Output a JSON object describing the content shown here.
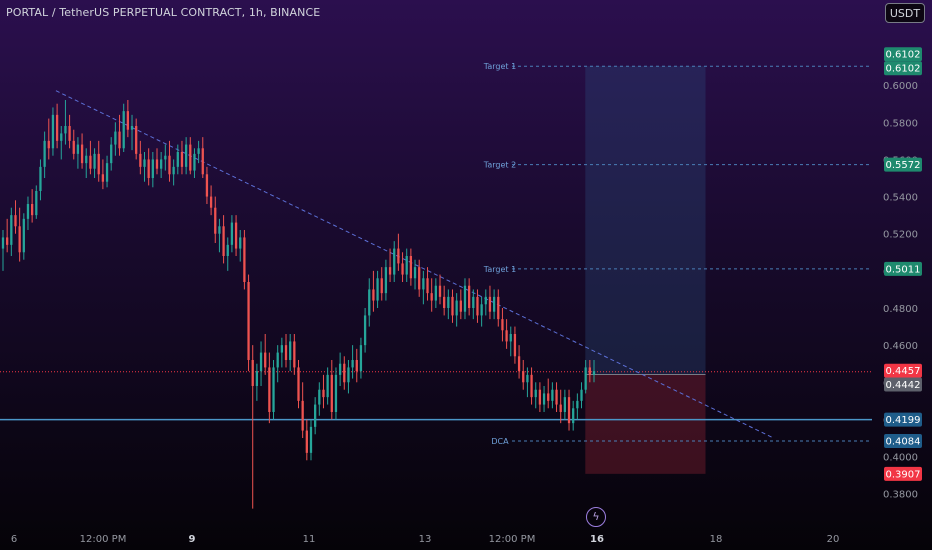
{
  "header": {
    "title": "PORTAL / TetherUS PERPETUAL CONTRACT, 1h, BINANCE",
    "currency_button": "USDT"
  },
  "flash_icon": "lightning-icon",
  "chart_data": {
    "type": "candlestick",
    "symbol": "PORTAL / TetherUS PERPETUAL CONTRACT",
    "interval": "1h",
    "exchange": "BINANCE",
    "y_axis": {
      "range": [
        0.368,
        0.62
      ],
      "ticks": [
        "0.6000",
        "0.5800",
        "0.5600",
        "0.5400",
        "0.5200",
        "0.5000",
        "0.4800",
        "0.4600",
        "0.4400",
        "0.4200",
        "0.4000",
        "0.3800"
      ]
    },
    "x_axis": {
      "ticks": [
        "6",
        "12:00 PM",
        "9",
        "11",
        "13",
        "12:00 PM",
        "16",
        "18",
        "20"
      ],
      "bold_ticks": [
        "9",
        "16"
      ]
    },
    "price_labels": [
      {
        "text": "0.6102",
        "value": 0.6102,
        "color": "#1e8a6e"
      },
      {
        "text": "0.6102",
        "value": 0.6102,
        "color": "#1e8a6e"
      },
      {
        "text": "0.5572",
        "value": 0.5572,
        "color": "#1e8a6e"
      },
      {
        "text": "0.5011",
        "value": 0.5011,
        "color": "#1e8a6e"
      },
      {
        "text": "0.4457",
        "value": 0.4457,
        "color": "#f23645"
      },
      {
        "text": "0.4442",
        "value": 0.4442,
        "color": "#5d606b"
      },
      {
        "text": "0.4199",
        "value": 0.4199,
        "color": "#1f5d8a"
      },
      {
        "text": "0.4084",
        "value": 0.4084,
        "color": "#1f5d8a"
      },
      {
        "text": "0.3907",
        "value": 0.3907,
        "color": "#f23645"
      }
    ],
    "levels": [
      {
        "label": "Target 1",
        "value": 0.6102
      },
      {
        "label": "Target 2",
        "value": 0.5572
      },
      {
        "label": "Target 1",
        "value": 0.5011
      },
      {
        "label": "DCA",
        "value": 0.4084
      }
    ],
    "support_line": 0.4199,
    "current_price": 0.4457,
    "position": {
      "entry": 0.4442,
      "target": 0.6102,
      "stop": 0.3907,
      "x_start_pct": 0.628,
      "x_end_pct": 0.757
    },
    "trendline": {
      "start": {
        "x_pct": 0.06,
        "price": 0.597
      },
      "end": {
        "x_pct": 0.83,
        "price": 0.41
      }
    },
    "candles": [
      {
        "o": 0.512,
        "h": 0.522,
        "l": 0.5,
        "c": 0.518
      },
      {
        "o": 0.518,
        "h": 0.528,
        "l": 0.51,
        "c": 0.514
      },
      {
        "o": 0.514,
        "h": 0.534,
        "l": 0.508,
        "c": 0.53
      },
      {
        "o": 0.53,
        "h": 0.538,
        "l": 0.52,
        "c": 0.524
      },
      {
        "o": 0.524,
        "h": 0.534,
        "l": 0.505,
        "c": 0.51
      },
      {
        "o": 0.51,
        "h": 0.531,
        "l": 0.506,
        "c": 0.528
      },
      {
        "o": 0.528,
        "h": 0.54,
        "l": 0.522,
        "c": 0.536
      },
      {
        "o": 0.536,
        "h": 0.544,
        "l": 0.526,
        "c": 0.53
      },
      {
        "o": 0.53,
        "h": 0.546,
        "l": 0.528,
        "c": 0.543
      },
      {
        "o": 0.543,
        "h": 0.56,
        "l": 0.538,
        "c": 0.556
      },
      {
        "o": 0.556,
        "h": 0.575,
        "l": 0.55,
        "c": 0.57
      },
      {
        "o": 0.57,
        "h": 0.582,
        "l": 0.56,
        "c": 0.566
      },
      {
        "o": 0.566,
        "h": 0.588,
        "l": 0.562,
        "c": 0.584
      },
      {
        "o": 0.584,
        "h": 0.59,
        "l": 0.566,
        "c": 0.57
      },
      {
        "o": 0.57,
        "h": 0.578,
        "l": 0.56,
        "c": 0.574
      },
      {
        "o": 0.574,
        "h": 0.592,
        "l": 0.568,
        "c": 0.578
      },
      {
        "o": 0.578,
        "h": 0.584,
        "l": 0.566,
        "c": 0.57
      },
      {
        "o": 0.57,
        "h": 0.576,
        "l": 0.56,
        "c": 0.563
      },
      {
        "o": 0.563,
        "h": 0.572,
        "l": 0.555,
        "c": 0.568
      },
      {
        "o": 0.568,
        "h": 0.574,
        "l": 0.555,
        "c": 0.558
      },
      {
        "o": 0.558,
        "h": 0.566,
        "l": 0.55,
        "c": 0.562
      },
      {
        "o": 0.562,
        "h": 0.57,
        "l": 0.552,
        "c": 0.555
      },
      {
        "o": 0.555,
        "h": 0.566,
        "l": 0.55,
        "c": 0.563
      },
      {
        "o": 0.563,
        "h": 0.57,
        "l": 0.548,
        "c": 0.552
      },
      {
        "o": 0.552,
        "h": 0.56,
        "l": 0.544,
        "c": 0.548
      },
      {
        "o": 0.548,
        "h": 0.562,
        "l": 0.545,
        "c": 0.558
      },
      {
        "o": 0.558,
        "h": 0.572,
        "l": 0.554,
        "c": 0.568
      },
      {
        "o": 0.568,
        "h": 0.58,
        "l": 0.562,
        "c": 0.575
      },
      {
        "o": 0.575,
        "h": 0.584,
        "l": 0.562,
        "c": 0.566
      },
      {
        "o": 0.566,
        "h": 0.59,
        "l": 0.564,
        "c": 0.586
      },
      {
        "o": 0.586,
        "h": 0.592,
        "l": 0.572,
        "c": 0.576
      },
      {
        "o": 0.576,
        "h": 0.584,
        "l": 0.565,
        "c": 0.578
      },
      {
        "o": 0.578,
        "h": 0.582,
        "l": 0.56,
        "c": 0.563
      },
      {
        "o": 0.563,
        "h": 0.57,
        "l": 0.552,
        "c": 0.556
      },
      {
        "o": 0.556,
        "h": 0.564,
        "l": 0.548,
        "c": 0.56
      },
      {
        "o": 0.56,
        "h": 0.566,
        "l": 0.546,
        "c": 0.55
      },
      {
        "o": 0.55,
        "h": 0.564,
        "l": 0.545,
        "c": 0.56
      },
      {
        "o": 0.56,
        "h": 0.566,
        "l": 0.552,
        "c": 0.555
      },
      {
        "o": 0.555,
        "h": 0.564,
        "l": 0.55,
        "c": 0.56
      },
      {
        "o": 0.56,
        "h": 0.568,
        "l": 0.554,
        "c": 0.562
      },
      {
        "o": 0.562,
        "h": 0.57,
        "l": 0.548,
        "c": 0.552
      },
      {
        "o": 0.552,
        "h": 0.56,
        "l": 0.546,
        "c": 0.556
      },
      {
        "o": 0.556,
        "h": 0.568,
        "l": 0.552,
        "c": 0.564
      },
      {
        "o": 0.564,
        "h": 0.57,
        "l": 0.552,
        "c": 0.556
      },
      {
        "o": 0.556,
        "h": 0.572,
        "l": 0.552,
        "c": 0.568
      },
      {
        "o": 0.568,
        "h": 0.572,
        "l": 0.552,
        "c": 0.554
      },
      {
        "o": 0.554,
        "h": 0.566,
        "l": 0.55,
        "c": 0.563
      },
      {
        "o": 0.563,
        "h": 0.57,
        "l": 0.558,
        "c": 0.566
      },
      {
        "o": 0.566,
        "h": 0.572,
        "l": 0.55,
        "c": 0.552
      },
      {
        "o": 0.552,
        "h": 0.556,
        "l": 0.536,
        "c": 0.54
      },
      {
        "o": 0.54,
        "h": 0.546,
        "l": 0.53,
        "c": 0.534
      },
      {
        "o": 0.534,
        "h": 0.54,
        "l": 0.515,
        "c": 0.52
      },
      {
        "o": 0.52,
        "h": 0.528,
        "l": 0.51,
        "c": 0.524
      },
      {
        "o": 0.524,
        "h": 0.53,
        "l": 0.504,
        "c": 0.508
      },
      {
        "o": 0.508,
        "h": 0.518,
        "l": 0.5,
        "c": 0.514
      },
      {
        "o": 0.514,
        "h": 0.53,
        "l": 0.51,
        "c": 0.526
      },
      {
        "o": 0.526,
        "h": 0.53,
        "l": 0.508,
        "c": 0.512
      },
      {
        "o": 0.512,
        "h": 0.522,
        "l": 0.505,
        "c": 0.518
      },
      {
        "o": 0.518,
        "h": 0.522,
        "l": 0.49,
        "c": 0.494
      },
      {
        "o": 0.494,
        "h": 0.498,
        "l": 0.446,
        "c": 0.452
      },
      {
        "o": 0.452,
        "h": 0.46,
        "l": 0.372,
        "c": 0.438
      },
      {
        "o": 0.438,
        "h": 0.45,
        "l": 0.43,
        "c": 0.446
      },
      {
        "o": 0.446,
        "h": 0.462,
        "l": 0.438,
        "c": 0.456
      },
      {
        "o": 0.456,
        "h": 0.466,
        "l": 0.444,
        "c": 0.448
      },
      {
        "o": 0.448,
        "h": 0.456,
        "l": 0.418,
        "c": 0.424
      },
      {
        "o": 0.424,
        "h": 0.452,
        "l": 0.42,
        "c": 0.448
      },
      {
        "o": 0.448,
        "h": 0.46,
        "l": 0.44,
        "c": 0.456
      },
      {
        "o": 0.456,
        "h": 0.464,
        "l": 0.448,
        "c": 0.46
      },
      {
        "o": 0.46,
        "h": 0.466,
        "l": 0.448,
        "c": 0.452
      },
      {
        "o": 0.452,
        "h": 0.466,
        "l": 0.446,
        "c": 0.462
      },
      {
        "o": 0.462,
        "h": 0.466,
        "l": 0.444,
        "c": 0.448
      },
      {
        "o": 0.448,
        "h": 0.452,
        "l": 0.426,
        "c": 0.43
      },
      {
        "o": 0.43,
        "h": 0.44,
        "l": 0.41,
        "c": 0.414
      },
      {
        "o": 0.414,
        "h": 0.42,
        "l": 0.398,
        "c": 0.402
      },
      {
        "o": 0.402,
        "h": 0.42,
        "l": 0.398,
        "c": 0.416
      },
      {
        "o": 0.416,
        "h": 0.432,
        "l": 0.412,
        "c": 0.428
      },
      {
        "o": 0.428,
        "h": 0.44,
        "l": 0.422,
        "c": 0.436
      },
      {
        "o": 0.436,
        "h": 0.444,
        "l": 0.426,
        "c": 0.432
      },
      {
        "o": 0.432,
        "h": 0.448,
        "l": 0.428,
        "c": 0.444
      },
      {
        "o": 0.444,
        "h": 0.452,
        "l": 0.42,
        "c": 0.424
      },
      {
        "o": 0.424,
        "h": 0.448,
        "l": 0.42,
        "c": 0.444
      },
      {
        "o": 0.444,
        "h": 0.456,
        "l": 0.438,
        "c": 0.45
      },
      {
        "o": 0.45,
        "h": 0.454,
        "l": 0.436,
        "c": 0.44
      },
      {
        "o": 0.44,
        "h": 0.452,
        "l": 0.434,
        "c": 0.448
      },
      {
        "o": 0.448,
        "h": 0.46,
        "l": 0.442,
        "c": 0.452
      },
      {
        "o": 0.452,
        "h": 0.458,
        "l": 0.44,
        "c": 0.446
      },
      {
        "o": 0.446,
        "h": 0.464,
        "l": 0.442,
        "c": 0.46
      },
      {
        "o": 0.46,
        "h": 0.48,
        "l": 0.456,
        "c": 0.476
      },
      {
        "o": 0.476,
        "h": 0.496,
        "l": 0.47,
        "c": 0.49
      },
      {
        "o": 0.49,
        "h": 0.5,
        "l": 0.478,
        "c": 0.484
      },
      {
        "o": 0.484,
        "h": 0.5,
        "l": 0.48,
        "c": 0.496
      },
      {
        "o": 0.496,
        "h": 0.502,
        "l": 0.484,
        "c": 0.488
      },
      {
        "o": 0.488,
        "h": 0.506,
        "l": 0.484,
        "c": 0.502
      },
      {
        "o": 0.502,
        "h": 0.512,
        "l": 0.494,
        "c": 0.498
      },
      {
        "o": 0.498,
        "h": 0.516,
        "l": 0.494,
        "c": 0.512
      },
      {
        "o": 0.512,
        "h": 0.52,
        "l": 0.5,
        "c": 0.504
      },
      {
        "o": 0.504,
        "h": 0.51,
        "l": 0.494,
        "c": 0.498
      },
      {
        "o": 0.498,
        "h": 0.512,
        "l": 0.494,
        "c": 0.508
      },
      {
        "o": 0.508,
        "h": 0.512,
        "l": 0.492,
        "c": 0.496
      },
      {
        "o": 0.496,
        "h": 0.506,
        "l": 0.49,
        "c": 0.502
      },
      {
        "o": 0.502,
        "h": 0.506,
        "l": 0.486,
        "c": 0.49
      },
      {
        "o": 0.49,
        "h": 0.5,
        "l": 0.482,
        "c": 0.496
      },
      {
        "o": 0.496,
        "h": 0.502,
        "l": 0.484,
        "c": 0.488
      },
      {
        "o": 0.488,
        "h": 0.496,
        "l": 0.478,
        "c": 0.484
      },
      {
        "o": 0.484,
        "h": 0.496,
        "l": 0.48,
        "c": 0.492
      },
      {
        "o": 0.492,
        "h": 0.498,
        "l": 0.482,
        "c": 0.486
      },
      {
        "o": 0.486,
        "h": 0.492,
        "l": 0.476,
        "c": 0.48
      },
      {
        "o": 0.48,
        "h": 0.49,
        "l": 0.474,
        "c": 0.486
      },
      {
        "o": 0.486,
        "h": 0.49,
        "l": 0.472,
        "c": 0.476
      },
      {
        "o": 0.476,
        "h": 0.488,
        "l": 0.47,
        "c": 0.484
      },
      {
        "o": 0.484,
        "h": 0.49,
        "l": 0.474,
        "c": 0.478
      },
      {
        "o": 0.478,
        "h": 0.496,
        "l": 0.474,
        "c": 0.492
      },
      {
        "o": 0.492,
        "h": 0.496,
        "l": 0.476,
        "c": 0.48
      },
      {
        "o": 0.48,
        "h": 0.49,
        "l": 0.474,
        "c": 0.486
      },
      {
        "o": 0.486,
        "h": 0.49,
        "l": 0.472,
        "c": 0.476
      },
      {
        "o": 0.476,
        "h": 0.486,
        "l": 0.47,
        "c": 0.482
      },
      {
        "o": 0.482,
        "h": 0.49,
        "l": 0.476,
        "c": 0.486
      },
      {
        "o": 0.486,
        "h": 0.492,
        "l": 0.474,
        "c": 0.478
      },
      {
        "o": 0.478,
        "h": 0.49,
        "l": 0.474,
        "c": 0.486
      },
      {
        "o": 0.486,
        "h": 0.49,
        "l": 0.47,
        "c": 0.474
      },
      {
        "o": 0.474,
        "h": 0.48,
        "l": 0.462,
        "c": 0.468
      },
      {
        "o": 0.468,
        "h": 0.474,
        "l": 0.458,
        "c": 0.462
      },
      {
        "o": 0.462,
        "h": 0.47,
        "l": 0.454,
        "c": 0.466
      },
      {
        "o": 0.466,
        "h": 0.47,
        "l": 0.45,
        "c": 0.454
      },
      {
        "o": 0.454,
        "h": 0.46,
        "l": 0.442,
        "c": 0.446
      },
      {
        "o": 0.446,
        "h": 0.452,
        "l": 0.436,
        "c": 0.44
      },
      {
        "o": 0.44,
        "h": 0.448,
        "l": 0.432,
        "c": 0.444
      },
      {
        "o": 0.444,
        "h": 0.448,
        "l": 0.428,
        "c": 0.432
      },
      {
        "o": 0.432,
        "h": 0.44,
        "l": 0.426,
        "c": 0.436
      },
      {
        "o": 0.436,
        "h": 0.44,
        "l": 0.424,
        "c": 0.428
      },
      {
        "o": 0.428,
        "h": 0.438,
        "l": 0.424,
        "c": 0.434
      },
      {
        "o": 0.434,
        "h": 0.442,
        "l": 0.426,
        "c": 0.43
      },
      {
        "o": 0.43,
        "h": 0.44,
        "l": 0.426,
        "c": 0.436
      },
      {
        "o": 0.436,
        "h": 0.44,
        "l": 0.424,
        "c": 0.428
      },
      {
        "o": 0.428,
        "h": 0.436,
        "l": 0.418,
        "c": 0.424
      },
      {
        "o": 0.424,
        "h": 0.436,
        "l": 0.42,
        "c": 0.432
      },
      {
        "o": 0.432,
        "h": 0.436,
        "l": 0.414,
        "c": 0.418
      },
      {
        "o": 0.418,
        "h": 0.43,
        "l": 0.414,
        "c": 0.426
      },
      {
        "o": 0.426,
        "h": 0.434,
        "l": 0.42,
        "c": 0.43
      },
      {
        "o": 0.43,
        "h": 0.44,
        "l": 0.426,
        "c": 0.436
      },
      {
        "o": 0.436,
        "h": 0.452,
        "l": 0.434,
        "c": 0.448
      },
      {
        "o": 0.448,
        "h": 0.452,
        "l": 0.44,
        "c": 0.444
      },
      {
        "o": 0.444,
        "h": 0.452,
        "l": 0.44,
        "c": 0.446
      }
    ]
  }
}
